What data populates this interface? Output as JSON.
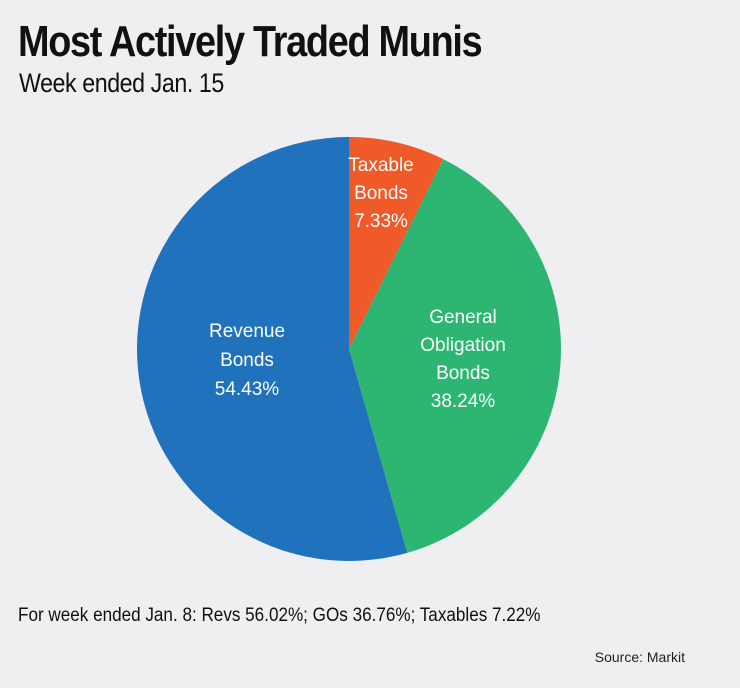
{
  "chart_data": {
    "type": "pie",
    "title": "Most Actively Traded Munis",
    "subtitle": "Week ended Jan. 15",
    "slices": [
      {
        "label_lines": [
          "Taxable",
          "Bonds"
        ],
        "value": 7.33,
        "value_label": "7.33%",
        "color": "#f05a28"
      },
      {
        "label_lines": [
          "General",
          "Obligation",
          "Bonds"
        ],
        "value": 38.24,
        "value_label": "38.24%",
        "color": "#2db672"
      },
      {
        "label_lines": [
          "Revenue",
          "Bonds"
        ],
        "value": 54.43,
        "value_label": "54.43%",
        "color": "#1f72bb"
      }
    ],
    "start_angle": "12 o'clock",
    "direction": "clockwise"
  },
  "footnote": "For week ended Jan. 8: Revs 56.02%; GOs 36.76%; Taxables 7.22%",
  "source": "Source: Markit"
}
